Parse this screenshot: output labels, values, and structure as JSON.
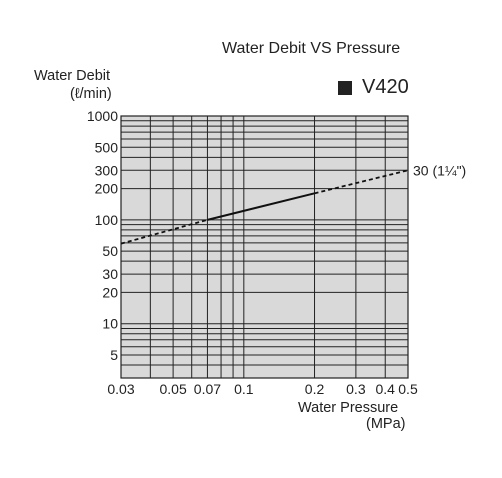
{
  "chart_data": {
    "type": "line",
    "title": "Water Debit VS Pressure",
    "ylabel_line1": "Water Debit",
    "ylabel_line2": "(ℓ/min)",
    "xlabel_line1": "Water Pressure",
    "xlabel_line2": "(MPa)",
    "legend": {
      "label": "V420",
      "placement": "top-right"
    },
    "x_scale": "log",
    "y_scale": "log",
    "xlim": [
      0.03,
      0.5
    ],
    "ylim": [
      3,
      1000
    ],
    "grid": true,
    "x_ticks": [
      {
        "value": 0.03,
        "label": "0.03"
      },
      {
        "value": 0.05,
        "label": "0.05"
      },
      {
        "value": 0.07,
        "label": "0.07"
      },
      {
        "value": 0.1,
        "label": "0.1"
      },
      {
        "value": 0.2,
        "label": "0.2"
      },
      {
        "value": 0.3,
        "label": "0.3"
      },
      {
        "value": 0.4,
        "label": "0.4"
      },
      {
        "value": 0.5,
        "label": "0.5"
      }
    ],
    "y_ticks": [
      {
        "value": 1000,
        "label": "1000"
      },
      {
        "value": 500,
        "label": "500"
      },
      {
        "value": 300,
        "label": "300"
      },
      {
        "value": 200,
        "label": "200"
      },
      {
        "value": 100,
        "label": "100"
      },
      {
        "value": 50,
        "label": "50"
      },
      {
        "value": 30,
        "label": "30"
      },
      {
        "value": 20,
        "label": "20"
      },
      {
        "value": 10,
        "label": "10"
      },
      {
        "value": 5,
        "label": "5"
      }
    ],
    "x_grid": [
      0.03,
      0.04,
      0.05,
      0.06,
      0.07,
      0.08,
      0.09,
      0.1,
      0.2,
      0.3,
      0.4,
      0.5
    ],
    "y_grid": [
      3,
      4,
      5,
      6,
      7,
      8,
      9,
      10,
      20,
      30,
      40,
      50,
      60,
      70,
      80,
      90,
      100,
      200,
      300,
      400,
      500,
      600,
      700,
      800,
      900,
      1000
    ],
    "series": [
      {
        "name": "30 (1¼\")",
        "points": [
          {
            "x": 0.03,
            "y": 59
          },
          {
            "x": 0.07,
            "y": 100
          },
          {
            "x": 0.2,
            "y": 180
          },
          {
            "x": 0.5,
            "y": 300
          }
        ],
        "solid_range": [
          0.07,
          0.2
        ]
      }
    ],
    "colors": {
      "plot_bg": "#d9d9d9",
      "grid": "#222222",
      "line": "#111111"
    }
  }
}
